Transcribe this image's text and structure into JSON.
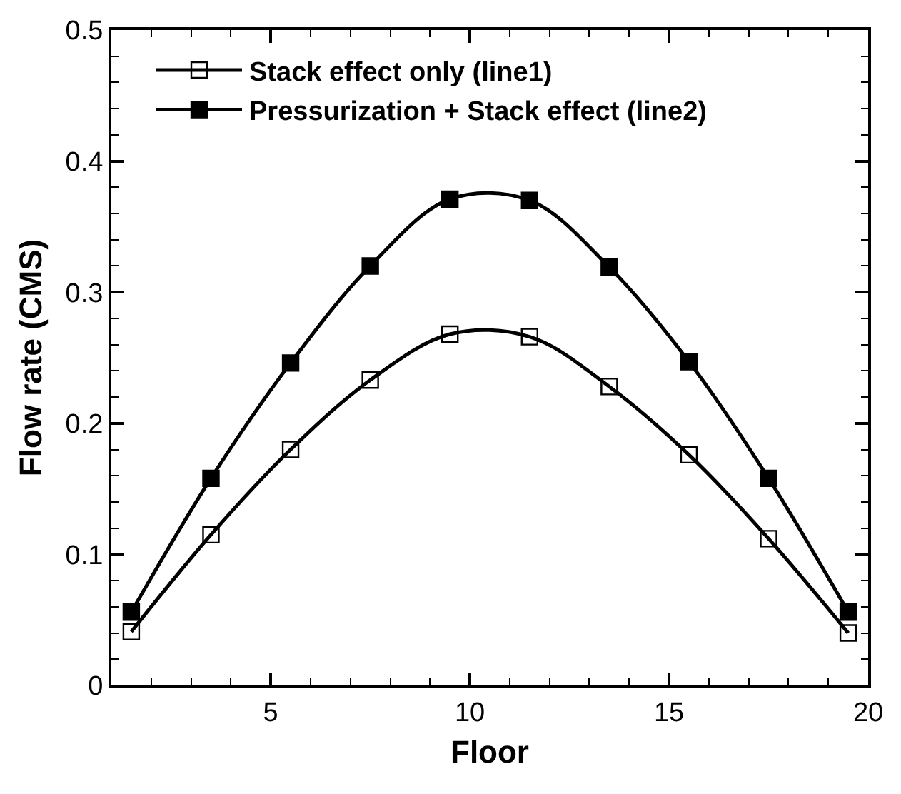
{
  "chart_data": {
    "type": "line",
    "xlabel": "Floor",
    "ylabel": "Flow rate (CMS)",
    "x": [
      1.5,
      3.5,
      5.5,
      7.5,
      9.5,
      11.5,
      13.5,
      15.5,
      17.5,
      19.5
    ],
    "series": [
      {
        "name": "Stack effect only (line1)",
        "color": "#000000",
        "marker": "square-open",
        "values": [
          0.041,
          0.115,
          0.18,
          0.233,
          0.268,
          0.266,
          0.228,
          0.176,
          0.112,
          0.04
        ]
      },
      {
        "name": "Pressurization + Stack effect (line2)",
        "color": "#000000",
        "marker": "square",
        "values": [
          0.056,
          0.158,
          0.246,
          0.32,
          0.371,
          0.37,
          0.319,
          0.247,
          0.158,
          0.056
        ]
      }
    ],
    "xlim": [
      1,
      20
    ],
    "xticks": [
      5,
      10,
      15,
      20
    ],
    "ylim": [
      0,
      0.5
    ],
    "yticks": [
      0,
      0.1,
      0.2,
      0.3,
      0.4,
      0.5
    ],
    "grid": false,
    "legend": "top left",
    "line_style": "solid"
  }
}
